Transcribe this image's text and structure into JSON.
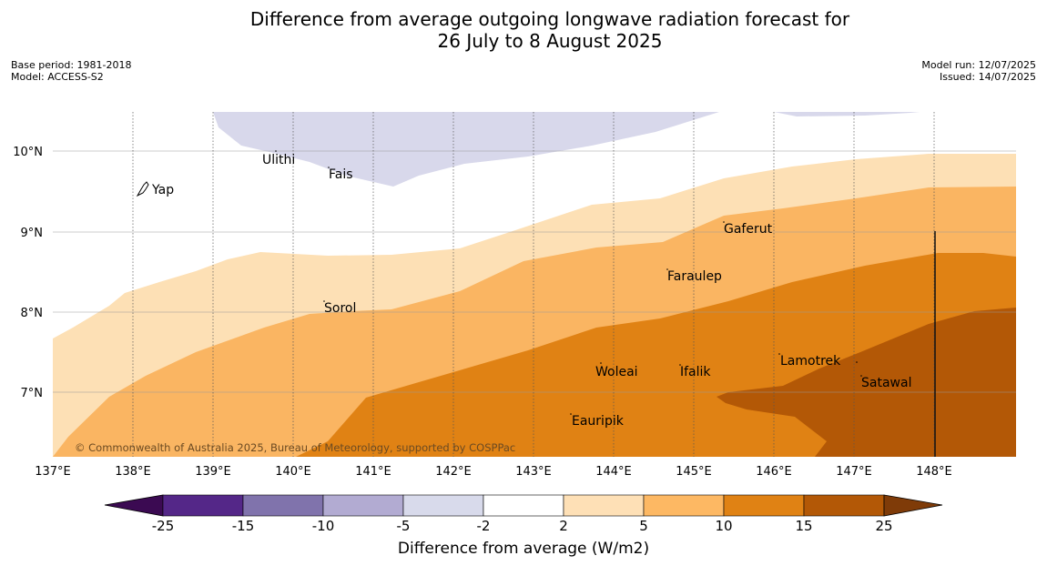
{
  "title": {
    "line1": "Difference from average outgoing longwave radiation forecast for",
    "line2": "26 July to 8 August 2025"
  },
  "meta_left": {
    "base_period": "Base period: 1981-2018",
    "model": "Model: ACCESS-S2"
  },
  "meta_right": {
    "model_run": "Model run: 12/07/2025",
    "issued": "Issued: 14/07/2025"
  },
  "map": {
    "lon_labels": [
      "137°E",
      "138°E",
      "139°E",
      "140°E",
      "141°E",
      "142°E",
      "143°E",
      "144°E",
      "145°E",
      "146°E",
      "147°E",
      "148°E"
    ],
    "lat_labels": [
      "10°N",
      "9°N",
      "8°N",
      "7°N"
    ],
    "places": [
      {
        "name": "Ulithi"
      },
      {
        "name": "Fais"
      },
      {
        "name": "Yap"
      },
      {
        "name": "Gaferut"
      },
      {
        "name": "Faraulep"
      },
      {
        "name": "Sorol"
      },
      {
        "name": "Lamotrek"
      },
      {
        "name": "Woleai"
      },
      {
        "name": "Ifalik"
      },
      {
        "name": "Satawal"
      },
      {
        "name": "Eauripik"
      }
    ],
    "copyright": "© Commonwealth of Australia 2025, Bureau of Meteorology, supported by COSPPac",
    "colors": {
      "neg_light": "#d8d8eb",
      "pos_2_5": "#fde0b5",
      "pos_5_10": "#fab562",
      "pos_10_15": "#e08214",
      "pos_15_25": "#b35806"
    }
  },
  "colorbar": {
    "tick_labels": [
      "-25",
      "-15",
      "-10",
      "-5",
      "-2",
      "2",
      "5",
      "10",
      "15",
      "25"
    ],
    "colors": [
      "#3b0a52",
      "#542788",
      "#8073ac",
      "#b2abd2",
      "#d8daeb",
      "#ffffff",
      "#fee0b6",
      "#fdb863",
      "#e08214",
      "#b35806",
      "#7f3b08"
    ],
    "label": "Difference from average (W/m2)"
  }
}
